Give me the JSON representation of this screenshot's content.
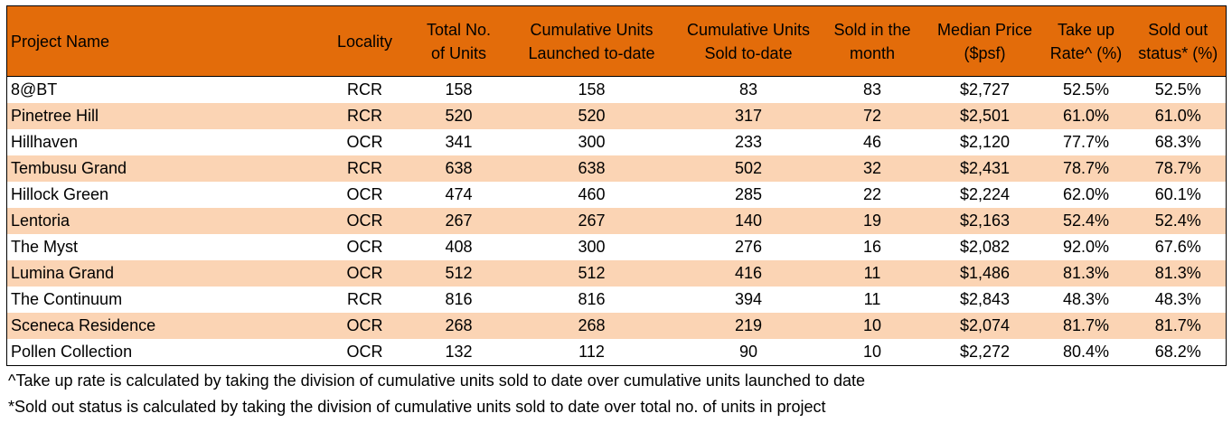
{
  "colors": {
    "header_bg": "#e36c0a",
    "row_alt_bg": "#fbd4b4",
    "row_bg": "#ffffff"
  },
  "table": {
    "columns": [
      "Project Name",
      "Locality",
      "Total No. of Units",
      "Cumulative Units Launched to-date",
      "Cumulative Units Sold to-date",
      "Sold in the month",
      "Median Price ($psf)",
      "Take up Rate^ (%)",
      "Sold out status* (%)"
    ],
    "rows": [
      [
        "8@BT",
        "RCR",
        "158",
        "158",
        "83",
        "83",
        "$2,727",
        "52.5%",
        "52.5%"
      ],
      [
        "Pinetree Hill",
        "RCR",
        "520",
        "520",
        "317",
        "72",
        "$2,501",
        "61.0%",
        "61.0%"
      ],
      [
        "Hillhaven",
        "OCR",
        "341",
        "300",
        "233",
        "46",
        "$2,120",
        "77.7%",
        "68.3%"
      ],
      [
        "Tembusu Grand",
        "RCR",
        "638",
        "638",
        "502",
        "32",
        "$2,431",
        "78.7%",
        "78.7%"
      ],
      [
        "Hillock Green",
        "OCR",
        "474",
        "460",
        "285",
        "22",
        "$2,224",
        "62.0%",
        "60.1%"
      ],
      [
        "Lentoria",
        "OCR",
        "267",
        "267",
        "140",
        "19",
        "$2,163",
        "52.4%",
        "52.4%"
      ],
      [
        "The Myst",
        "OCR",
        "408",
        "300",
        "276",
        "16",
        "$2,082",
        "92.0%",
        "67.6%"
      ],
      [
        "Lumina Grand",
        "OCR",
        "512",
        "512",
        "416",
        "11",
        "$1,486",
        "81.3%",
        "81.3%"
      ],
      [
        "The Continuum",
        "RCR",
        "816",
        "816",
        "394",
        "11",
        "$2,843",
        "48.3%",
        "48.3%"
      ],
      [
        "Sceneca Residence",
        "OCR",
        "268",
        "268",
        "219",
        "10",
        "$2,074",
        "81.7%",
        "81.7%"
      ],
      [
        "Pollen Collection",
        "OCR",
        "132",
        "112",
        "90",
        "10",
        "$2,272",
        "80.4%",
        "68.2%"
      ]
    ]
  },
  "notes": [
    "^Take up rate is calculated by taking the division of cumulative units sold to date over cumulative units launched to date",
    "*Sold out status is calculated by taking the division of cumulative units sold to date over total no. of units in project"
  ]
}
